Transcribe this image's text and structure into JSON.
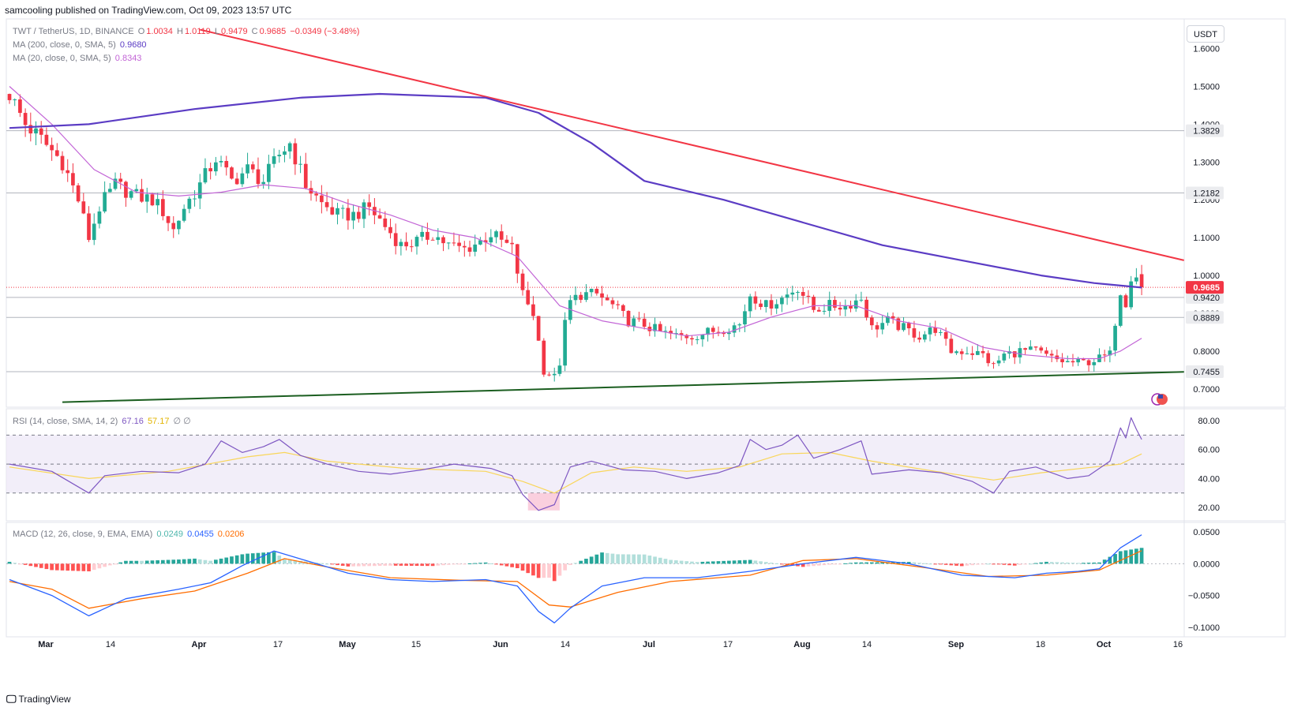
{
  "header": {
    "publish_line": "samcooling published on TradingView.com, Oct 09, 2023 13:57 UTC"
  },
  "legend": {
    "symbol": "TWT / TetherUS, 1D, BINANCE",
    "o_label": "O",
    "o_value": "1.0034",
    "h_label": "H",
    "h_value": "1.0119",
    "l_label": "L",
    "l_value": "0.9479",
    "c_label": "C",
    "c_value": "0.9685",
    "change": "−0.0349 (−3.48%)",
    "ma200_label": "MA (200, close, 0, SMA, 5)",
    "ma200_value": "0.9680",
    "ma20_label": "MA (20, close, 0, SMA, 5)",
    "ma20_value": "0.8343",
    "rsi_label": "RSI (14, close, SMA, 14, 2)",
    "rsi_value": "67.16",
    "rsi_ma_value": "57.17",
    "rsi_extra": "∅ ∅",
    "macd_label": "MACD (12, 26, close, 9, EMA, EMA)",
    "macd_hist": "0.0249",
    "macd_line": "0.0455",
    "macd_signal": "0.0206"
  },
  "currency_button": "USDT",
  "footer": {
    "brand": "TradingView"
  },
  "colors": {
    "up": "#22ab94",
    "down": "#f23645",
    "ma200": "#5b3cc4",
    "ma20": "#c264d6",
    "resistance": "#f23645",
    "support": "#1b5e20",
    "rsi": "#7e57c2",
    "rsi_ma": "#f9d65a",
    "macd": "#2962ff",
    "signal": "#ff6d00",
    "hist_up_strong": "#26a69a",
    "hist_up_weak": "#b2dfdb",
    "hist_down_strong": "#ff5252",
    "hist_down_weak": "#ffcdd2"
  },
  "chart_data": [
    {
      "type": "candlestick",
      "title": "TWT / TetherUS, 1D, BINANCE",
      "x_tick_labels": [
        "Mar",
        "14",
        "Apr",
        "17",
        "May",
        "15",
        "Jun",
        "14",
        "Jul",
        "17",
        "Aug",
        "14",
        "Sep",
        "18",
        "Oct",
        "16"
      ],
      "y_tick_labels": [
        "1.6000",
        "1.5000",
        "1.4000",
        "1.3000",
        "1.2000",
        "1.1000",
        "1.0000",
        "0.9000",
        "0.8000",
        "0.7000"
      ],
      "ylim": [
        0.66,
        1.67
      ],
      "price_levels": [
        1.3829,
        1.2182,
        0.942,
        0.8889,
        0.7455
      ],
      "price_level_labels": [
        "1.3829",
        "1.2182",
        "0.9420",
        "0.8889",
        "0.7455"
      ],
      "last_price": 0.9685,
      "last_price_label": "0.9685",
      "close_path": [
        [
          0,
          1.48
        ],
        [
          3,
          1.4
        ],
        [
          6,
          1.36
        ],
        [
          10,
          1.3
        ],
        [
          13,
          1.2
        ],
        [
          15,
          1.1
        ],
        [
          17,
          1.18
        ],
        [
          20,
          1.24
        ],
        [
          24,
          1.21
        ],
        [
          27,
          1.2
        ],
        [
          29,
          1.17
        ],
        [
          31,
          1.12
        ],
        [
          33,
          1.18
        ],
        [
          36,
          1.24
        ],
        [
          39,
          1.31
        ],
        [
          42,
          1.25
        ],
        [
          45,
          1.28
        ],
        [
          48,
          1.25
        ],
        [
          51,
          1.32
        ],
        [
          53,
          1.35
        ],
        [
          56,
          1.24
        ],
        [
          59,
          1.19
        ],
        [
          62,
          1.16
        ],
        [
          65,
          1.16
        ],
        [
          68,
          1.18
        ],
        [
          71,
          1.13
        ],
        [
          74,
          1.08
        ],
        [
          77,
          1.09
        ],
        [
          80,
          1.11
        ],
        [
          83,
          1.08
        ],
        [
          86,
          1.07
        ],
        [
          89,
          1.09
        ],
        [
          91,
          1.11
        ],
        [
          93,
          1.09
        ],
        [
          95,
          1.07
        ],
        [
          97,
          0.95
        ],
        [
          99,
          0.9
        ],
        [
          101,
          0.75
        ],
        [
          103,
          0.73
        ],
        [
          104,
          0.77
        ],
        [
          105,
          0.87
        ],
        [
          106,
          0.93
        ],
        [
          108,
          0.95
        ],
        [
          111,
          0.95
        ],
        [
          114,
          0.92
        ],
        [
          117,
          0.88
        ],
        [
          120,
          0.87
        ],
        [
          123,
          0.85
        ],
        [
          126,
          0.84
        ],
        [
          129,
          0.84
        ],
        [
          132,
          0.85
        ],
        [
          135,
          0.86
        ],
        [
          138,
          0.87
        ],
        [
          140,
          0.95
        ],
        [
          143,
          0.92
        ],
        [
          146,
          0.94
        ],
        [
          149,
          0.97
        ],
        [
          152,
          0.91
        ],
        [
          155,
          0.92
        ],
        [
          158,
          0.92
        ],
        [
          161,
          0.94
        ],
        [
          163,
          0.86
        ],
        [
          166,
          0.88
        ],
        [
          169,
          0.86
        ],
        [
          172,
          0.84
        ],
        [
          175,
          0.86
        ],
        [
          178,
          0.8
        ],
        [
          181,
          0.8
        ],
        [
          184,
          0.79
        ],
        [
          186,
          0.76
        ],
        [
          188,
          0.79
        ],
        [
          191,
          0.8
        ],
        [
          194,
          0.8
        ],
        [
          197,
          0.78
        ],
        [
          200,
          0.77
        ],
        [
          203,
          0.77
        ],
        [
          206,
          0.78
        ],
        [
          208,
          0.79
        ],
        [
          209,
          0.88
        ],
        [
          210,
          0.96
        ],
        [
          211,
          0.93
        ],
        [
          212,
          1.0
        ],
        [
          213,
          1.0034
        ],
        [
          214,
          0.9685
        ]
      ],
      "ma200_path": [
        [
          0,
          1.39
        ],
        [
          15,
          1.4
        ],
        [
          35,
          1.44
        ],
        [
          55,
          1.47
        ],
        [
          70,
          1.48
        ],
        [
          90,
          1.47
        ],
        [
          100,
          1.43
        ],
        [
          110,
          1.35
        ],
        [
          120,
          1.25
        ],
        [
          135,
          1.2
        ],
        [
          150,
          1.14
        ],
        [
          165,
          1.08
        ],
        [
          180,
          1.04
        ],
        [
          195,
          1.0
        ],
        [
          205,
          0.98
        ],
        [
          214,
          0.968
        ]
      ],
      "ma20_path": [
        [
          0,
          1.5
        ],
        [
          8,
          1.4
        ],
        [
          16,
          1.28
        ],
        [
          24,
          1.22
        ],
        [
          32,
          1.21
        ],
        [
          40,
          1.22
        ],
        [
          48,
          1.24
        ],
        [
          56,
          1.23
        ],
        [
          64,
          1.19
        ],
        [
          72,
          1.16
        ],
        [
          80,
          1.12
        ],
        [
          88,
          1.1
        ],
        [
          96,
          1.05
        ],
        [
          104,
          0.92
        ],
        [
          112,
          0.88
        ],
        [
          120,
          0.86
        ],
        [
          128,
          0.84
        ],
        [
          136,
          0.85
        ],
        [
          144,
          0.89
        ],
        [
          152,
          0.92
        ],
        [
          160,
          0.92
        ],
        [
          168,
          0.88
        ],
        [
          176,
          0.86
        ],
        [
          184,
          0.81
        ],
        [
          192,
          0.79
        ],
        [
          200,
          0.78
        ],
        [
          206,
          0.78
        ],
        [
          210,
          0.8
        ],
        [
          214,
          0.834
        ]
      ],
      "resistance_line": [
        [
          36,
          1.65
        ],
        [
          222,
          1.04
        ]
      ],
      "support_line": [
        [
          10,
          0.665
        ],
        [
          222,
          0.745
        ]
      ]
    },
    {
      "type": "line",
      "title": "RSI (14, close, SMA, 14, 2)",
      "y_tick_labels": [
        "80.00",
        "60.00",
        "40.00",
        "20.00"
      ],
      "ylim": [
        13,
        86
      ],
      "bands": [
        30,
        50,
        70
      ],
      "rsi_path": [
        [
          0,
          50
        ],
        [
          8,
          45
        ],
        [
          15,
          30
        ],
        [
          18,
          42
        ],
        [
          25,
          45
        ],
        [
          32,
          44
        ],
        [
          37,
          50
        ],
        [
          40,
          66
        ],
        [
          44,
          58
        ],
        [
          48,
          62
        ],
        [
          51,
          67
        ],
        [
          55,
          56
        ],
        [
          60,
          50
        ],
        [
          66,
          45
        ],
        [
          72,
          43
        ],
        [
          78,
          46
        ],
        [
          84,
          50
        ],
        [
          91,
          47
        ],
        [
          95,
          42
        ],
        [
          97,
          29
        ],
        [
          100,
          18
        ],
        [
          103,
          22
        ],
        [
          106,
          48
        ],
        [
          110,
          52
        ],
        [
          116,
          46
        ],
        [
          122,
          45
        ],
        [
          128,
          40
        ],
        [
          134,
          44
        ],
        [
          138,
          49
        ],
        [
          140,
          67
        ],
        [
          143,
          60
        ],
        [
          146,
          63
        ],
        [
          149,
          70
        ],
        [
          152,
          54
        ],
        [
          157,
          60
        ],
        [
          161,
          66
        ],
        [
          163,
          43
        ],
        [
          170,
          46
        ],
        [
          176,
          44
        ],
        [
          182,
          38
        ],
        [
          186,
          30
        ],
        [
          189,
          45
        ],
        [
          194,
          48
        ],
        [
          200,
          40
        ],
        [
          204,
          42
        ],
        [
          208,
          52
        ],
        [
          210,
          75
        ],
        [
          211,
          68
        ],
        [
          212,
          82
        ],
        [
          213,
          74
        ],
        [
          214,
          67
        ]
      ],
      "rsi_ma_path": [
        [
          0,
          48
        ],
        [
          15,
          40
        ],
        [
          30,
          45
        ],
        [
          45,
          55
        ],
        [
          52,
          58
        ],
        [
          60,
          52
        ],
        [
          75,
          47
        ],
        [
          90,
          45
        ],
        [
          97,
          38
        ],
        [
          103,
          30
        ],
        [
          110,
          44
        ],
        [
          118,
          48
        ],
        [
          128,
          45
        ],
        [
          138,
          48
        ],
        [
          146,
          57
        ],
        [
          155,
          58
        ],
        [
          163,
          52
        ],
        [
          175,
          45
        ],
        [
          186,
          39
        ],
        [
          195,
          44
        ],
        [
          205,
          48
        ],
        [
          210,
          50
        ],
        [
          214,
          57
        ]
      ]
    },
    {
      "type": "bar+line",
      "title": "MACD (12, 26, close, 9, EMA, EMA)",
      "y_tick_labels": [
        "0.0500",
        "0.0000",
        "−0.0500",
        "−0.1000"
      ],
      "ylim": [
        -0.11,
        0.06
      ],
      "macd_path": [
        [
          0,
          -0.025
        ],
        [
          8,
          -0.05
        ],
        [
          15,
          -0.082
        ],
        [
          22,
          -0.055
        ],
        [
          32,
          -0.04
        ],
        [
          38,
          -0.03
        ],
        [
          44,
          -0.003
        ],
        [
          50,
          0.02
        ],
        [
          56,
          0.005
        ],
        [
          64,
          -0.015
        ],
        [
          72,
          -0.025
        ],
        [
          80,
          -0.028
        ],
        [
          90,
          -0.025
        ],
        [
          96,
          -0.035
        ],
        [
          100,
          -0.075
        ],
        [
          103,
          -0.093
        ],
        [
          106,
          -0.07
        ],
        [
          112,
          -0.035
        ],
        [
          120,
          -0.022
        ],
        [
          130,
          -0.022
        ],
        [
          140,
          -0.012
        ],
        [
          150,
          0.0
        ],
        [
          160,
          0.01
        ],
        [
          170,
          0.0
        ],
        [
          180,
          -0.018
        ],
        [
          190,
          -0.022
        ],
        [
          196,
          -0.015
        ],
        [
          202,
          -0.012
        ],
        [
          206,
          -0.008
        ],
        [
          210,
          0.025
        ],
        [
          214,
          0.0455
        ]
      ],
      "signal_path": [
        [
          0,
          -0.028
        ],
        [
          8,
          -0.04
        ],
        [
          15,
          -0.07
        ],
        [
          25,
          -0.055
        ],
        [
          35,
          -0.043
        ],
        [
          45,
          -0.015
        ],
        [
          52,
          0.008
        ],
        [
          60,
          -0.005
        ],
        [
          72,
          -0.022
        ],
        [
          85,
          -0.026
        ],
        [
          96,
          -0.028
        ],
        [
          102,
          -0.065
        ],
        [
          106,
          -0.068
        ],
        [
          115,
          -0.045
        ],
        [
          125,
          -0.028
        ],
        [
          140,
          -0.018
        ],
        [
          150,
          0.005
        ],
        [
          160,
          0.008
        ],
        [
          172,
          -0.005
        ],
        [
          185,
          -0.02
        ],
        [
          196,
          -0.018
        ],
        [
          206,
          -0.01
        ],
        [
          214,
          0.0206
        ]
      ],
      "histogram_last": 0.0249
    }
  ]
}
